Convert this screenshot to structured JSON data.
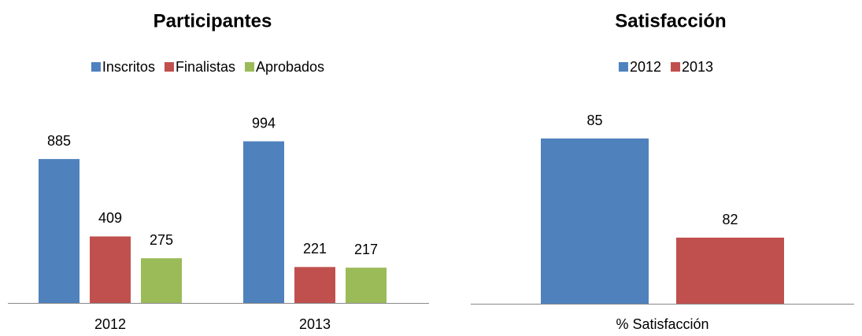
{
  "chart_data": [
    {
      "type": "bar",
      "title": "Participantes",
      "categories": [
        "2012",
        "2013"
      ],
      "series": [
        {
          "name": "Inscritos",
          "color": "#4f81bd",
          "values": [
            885,
            994
          ]
        },
        {
          "name": "Finalistas",
          "color": "#c0504d",
          "values": [
            409,
            221
          ]
        },
        {
          "name": "Aprobados",
          "color": "#9bbb59",
          "values": [
            275,
            217
          ]
        }
      ],
      "ylim": [
        0,
        1200
      ],
      "legend": "top"
    },
    {
      "type": "bar",
      "title": "Satisfacción",
      "categories": [
        "% Satisfacción"
      ],
      "series": [
        {
          "name": "2012",
          "color": "#4f81bd",
          "values": [
            85
          ]
        },
        {
          "name": "2013",
          "color": "#c0504d",
          "values": [
            82
          ]
        }
      ],
      "ylim": [
        80,
        86
      ],
      "legend": "top"
    }
  ]
}
